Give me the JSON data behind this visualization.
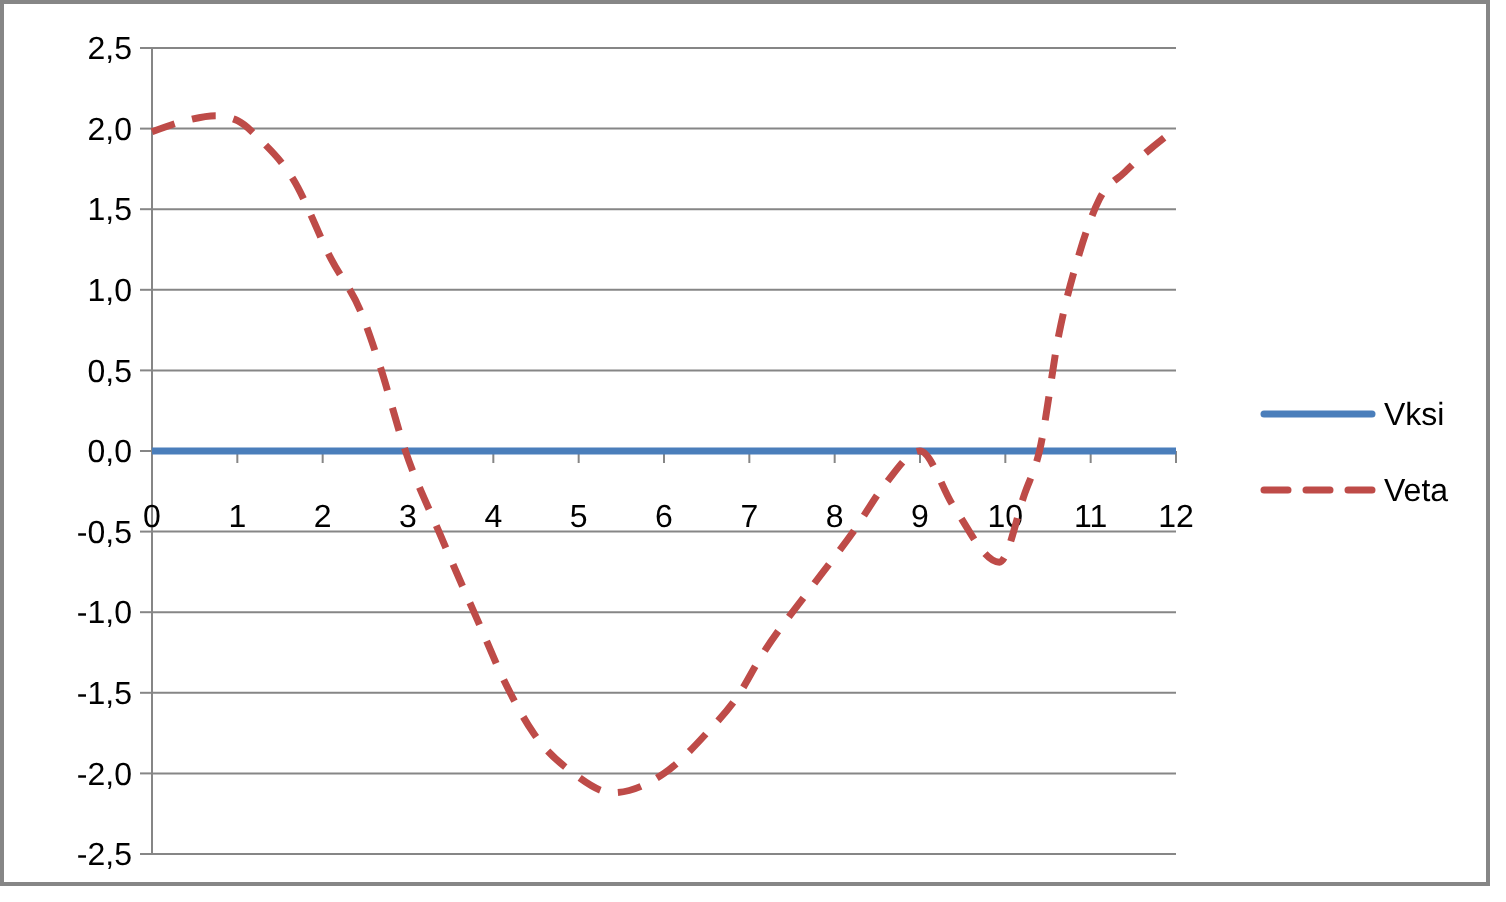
{
  "chart_data": {
    "type": "line",
    "xlim": [
      0,
      12
    ],
    "xticks": [
      0,
      1,
      2,
      3,
      4,
      5,
      6,
      7,
      8,
      9,
      10,
      11,
      12
    ],
    "ylim": [
      -2.5,
      2.5
    ],
    "yticks": [
      {
        "value": -2.5,
        "label": "-2,5"
      },
      {
        "value": -2,
        "label": "-2,0"
      },
      {
        "value": -1.5,
        "label": "-1,5"
      },
      {
        "value": -1,
        "label": "-1,0"
      },
      {
        "value": -0.5,
        "label": "-0,5"
      },
      {
        "value": 0,
        "label": "0,0"
      },
      {
        "value": 0.5,
        "label": "0,5"
      },
      {
        "value": 1,
        "label": "1,0"
      },
      {
        "value": 1.5,
        "label": "1,5"
      },
      {
        "value": 2,
        "label": "2,0"
      },
      {
        "value": 2.5,
        "label": "2,5"
      }
    ],
    "grid": "y",
    "legend": "right",
    "series": [
      {
        "name": "Vksi",
        "color": "#4a7ebb",
        "line_style": "solid",
        "x": [
          0,
          1,
          2,
          3,
          4,
          5,
          6,
          7,
          8,
          9,
          10,
          11,
          12
        ],
        "values": [
          0,
          0,
          0,
          0,
          0,
          0,
          0,
          0,
          0,
          0,
          0,
          0,
          0
        ]
      },
      {
        "name": "Veta",
        "color": "#be4b48",
        "line_style": "dashed",
        "x": [
          0,
          0.4,
          0.75,
          1,
          1.27,
          1.65,
          2.1,
          2.45,
          2.67,
          2.97,
          3.37,
          3.84,
          4.15,
          4.47,
          4.94,
          5.4,
          6,
          6.5,
          6.89,
          7.12,
          7.75,
          8.22,
          8.6,
          9,
          9.39,
          9.93,
          10.23,
          10.4,
          10.63,
          10.87,
          11.1,
          11.4,
          12
        ],
        "values": [
          1.98,
          2.05,
          2.08,
          2.05,
          1.93,
          1.69,
          1.19,
          0.86,
          0.53,
          0,
          -0.51,
          -1.08,
          -1.45,
          -1.75,
          -2,
          -2.12,
          -2,
          -1.75,
          -1.5,
          -1.29,
          -0.83,
          -0.5,
          -0.2,
          0,
          -0.34,
          -0.69,
          -0.26,
          0,
          0.73,
          1.23,
          1.56,
          1.73,
          2
        ]
      }
    ]
  }
}
